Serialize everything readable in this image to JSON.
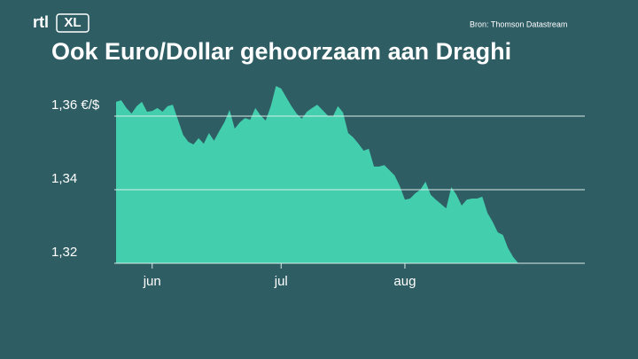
{
  "branding": {
    "channel": "rtl",
    "label": "XL"
  },
  "chart_data": {
    "type": "area",
    "title": "Ook Euro/Dollar gehoorzaam aan Draghi",
    "source": "Bron: Thomson Datastream",
    "categories": [
      null,
      null,
      null,
      null,
      null,
      null,
      null,
      "jun",
      null,
      null,
      null,
      null,
      null,
      null,
      null,
      null,
      null,
      null,
      null,
      null,
      null,
      null,
      null,
      null,
      null,
      null,
      null,
      null,
      null,
      null,
      null,
      null,
      "jul",
      null,
      null,
      null,
      null,
      null,
      null,
      null,
      null,
      null,
      null,
      null,
      null,
      null,
      null,
      null,
      null,
      null,
      null,
      null,
      null,
      null,
      null,
      null,
      "aug",
      null,
      null,
      null,
      null,
      null,
      null,
      null,
      null,
      null,
      null,
      null,
      null,
      null,
      null,
      null,
      null,
      null,
      null,
      null,
      null,
      null,
      null
    ],
    "values": [
      1.3639,
      1.3643,
      1.3622,
      1.3607,
      1.3627,
      1.3639,
      1.3612,
      1.3614,
      1.3622,
      1.3612,
      1.3627,
      1.3631,
      1.359,
      1.3549,
      1.353,
      1.3523,
      1.354,
      1.3525,
      1.3554,
      1.3533,
      1.3559,
      1.3583,
      1.3617,
      1.3566,
      1.3583,
      1.3595,
      1.359,
      1.3622,
      1.3602,
      1.3588,
      1.3627,
      1.3682,
      1.3675,
      1.3651,
      1.3627,
      1.3607,
      1.3593,
      1.3612,
      1.3622,
      1.3631,
      1.3617,
      1.3602,
      1.3598,
      1.3627,
      1.361,
      1.3554,
      1.3542,
      1.3525,
      1.3506,
      1.3511,
      1.3463,
      1.3463,
      1.3467,
      1.3453,
      1.3439,
      1.341,
      1.3373,
      1.3376,
      1.339,
      1.34,
      1.3422,
      1.3386,
      1.3373,
      1.3361,
      1.3349,
      1.3407,
      1.3386,
      1.3357,
      1.3373,
      1.3376,
      1.3376,
      1.3381,
      1.3337,
      1.3313,
      1.3284,
      1.3277,
      1.3241,
      1.3217,
      1.32
    ],
    "color": "#43cfae",
    "ylim": [
      1.32,
      1.37
    ],
    "yticks": [
      {
        "value": 1.32,
        "label": "1,32"
      },
      {
        "value": 1.34,
        "label": "1,34"
      },
      {
        "value": 1.36,
        "label": "1,36 €/$"
      }
    ],
    "grid": true
  }
}
